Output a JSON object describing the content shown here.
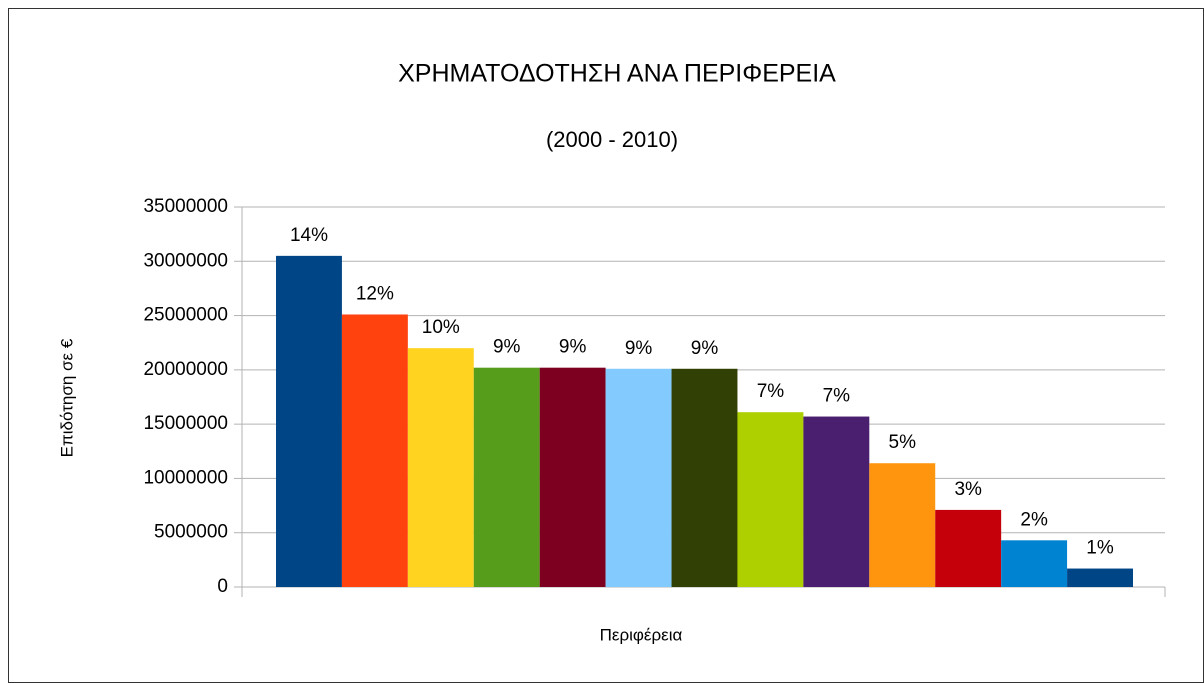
{
  "chart_data": {
    "type": "bar",
    "title": "ΧΡΗΜΑΤΟΔΟΤΗΣΗ ΑΝΑ ΠΕΡΙΦΕΡΕΙΑ",
    "subtitle": "(2000 - 2010)",
    "y_label": "Επιδότηση σε €",
    "x_label": "Περιφέρεια",
    "categories": [
      null,
      null,
      null,
      null,
      null,
      null,
      null,
      null,
      null,
      null,
      null,
      null,
      null
    ],
    "values": [
      30500000,
      25100000,
      22000000,
      20200000,
      20200000,
      20100000,
      20100000,
      16100000,
      15700000,
      11400000,
      7100000,
      4300000,
      1700000
    ],
    "value_labels": [
      "14%",
      "12%",
      "10%",
      "9%",
      "9%",
      "9%",
      "9%",
      "7%",
      "7%",
      "5%",
      "3%",
      "2%",
      "1%"
    ],
    "colors": [
      "#004586",
      "#ff420e",
      "#ffd320",
      "#579d1c",
      "#7e0021",
      "#83caff",
      "#314004",
      "#aecf00",
      "#4b1f6f",
      "#ff950e",
      "#c5000b",
      "#0084d1",
      "#004586"
    ],
    "ylim": [
      0,
      35000000
    ],
    "yticks": [
      0,
      5000000,
      10000000,
      15000000,
      20000000,
      25000000,
      30000000,
      35000000
    ],
    "grid": true
  }
}
